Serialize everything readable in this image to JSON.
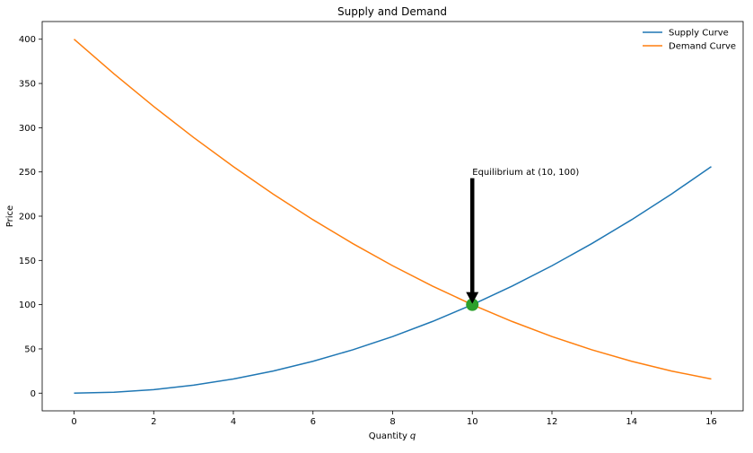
{
  "chart_data": {
    "type": "line",
    "title": "Supply and Demand",
    "xlabel": "Quantity",
    "xlabel_var": "q",
    "ylabel": "Price",
    "xlim": [
      -0.8,
      16.8
    ],
    "ylim": [
      -20,
      420
    ],
    "xticks": [
      0,
      2,
      4,
      6,
      8,
      10,
      12,
      14,
      16
    ],
    "yticks": [
      0,
      50,
      100,
      150,
      200,
      250,
      300,
      350,
      400
    ],
    "grid": false,
    "legend_position": "top-right",
    "series": [
      {
        "name": "Supply Curve",
        "color": "#1f77b4",
        "x": [
          0,
          1,
          2,
          3,
          4,
          5,
          6,
          7,
          8,
          9,
          10,
          11,
          12,
          13,
          14,
          15,
          16
        ],
        "values": [
          0,
          1,
          4,
          9,
          16,
          25,
          36,
          49,
          64,
          81,
          100,
          121,
          144,
          169,
          196,
          225,
          256
        ]
      },
      {
        "name": "Demand Curve",
        "color": "#ff7f0e",
        "x": [
          0,
          1,
          2,
          3,
          4,
          5,
          6,
          7,
          8,
          9,
          10,
          11,
          12,
          13,
          14,
          15,
          16
        ],
        "values": [
          400,
          361,
          324,
          289,
          256,
          225,
          196,
          169,
          144,
          121,
          100,
          81,
          64,
          49,
          36,
          25,
          16
        ]
      }
    ],
    "equilibrium": {
      "x": 10,
      "y": 100,
      "color": "#2ca02c"
    },
    "annotation": {
      "text": "Equilibrium at (10, 100)",
      "text_x": 10,
      "text_y": 250,
      "arrow_to_x": 10,
      "arrow_to_y": 100,
      "arrow_color": "#000000"
    }
  }
}
